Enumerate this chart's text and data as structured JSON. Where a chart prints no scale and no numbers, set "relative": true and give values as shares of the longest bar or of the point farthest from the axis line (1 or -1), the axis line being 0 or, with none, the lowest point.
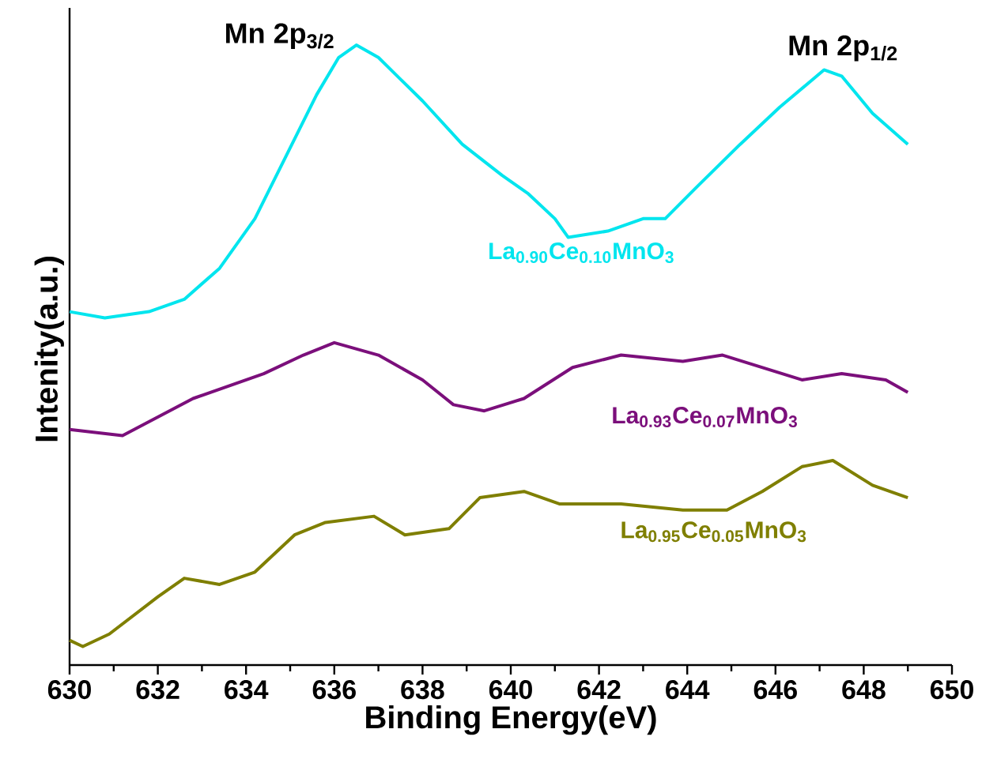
{
  "chart_data": {
    "type": "line",
    "relative": true,
    "xlabel": "Binding Energy(eV)",
    "ylabel": "Intenity(a.u.)",
    "xlim": [
      630,
      650
    ],
    "xticks": [
      630,
      632,
      634,
      636,
      638,
      640,
      642,
      644,
      646,
      648,
      650
    ],
    "tick_labels": "x",
    "legend": false,
    "grid": false,
    "marker": "none",
    "line_style": "solid",
    "annotations": [
      {
        "text": "Mn 2p$_{3/2}$",
        "x": 636.5,
        "y": 1.0
      },
      {
        "text": "Mn 2p$_{1/2}$",
        "x": 647.1,
        "y": 0.96
      }
    ],
    "series": [
      {
        "name": "La$_{0.90}$Ce$_{0.10}$MnO$_{3}$",
        "color": "#00e5ee",
        "x": [
          630.0,
          630.8,
          631.8,
          632.6,
          633.4,
          634.2,
          634.9,
          635.6,
          636.1,
          636.5,
          637.0,
          638.0,
          638.9,
          639.8,
          640.4,
          641.0,
          641.3,
          642.2,
          643.0,
          643.5,
          644.2,
          645.2,
          646.1,
          647.1,
          647.5,
          648.2,
          649.0
        ],
        "values": [
          0.57,
          0.56,
          0.57,
          0.59,
          0.64,
          0.72,
          0.82,
          0.92,
          0.98,
          1.0,
          0.98,
          0.91,
          0.84,
          0.79,
          0.76,
          0.72,
          0.69,
          0.7,
          0.72,
          0.72,
          0.77,
          0.84,
          0.9,
          0.96,
          0.95,
          0.89,
          0.84
        ]
      },
      {
        "name": "La$_{0.93}$Ce$_{0.07}$MnO$_{3}$",
        "color": "#7b0f7b",
        "x": [
          630.0,
          631.2,
          632.0,
          632.8,
          634.4,
          635.3,
          636.0,
          637.0,
          638.0,
          638.7,
          639.4,
          640.3,
          641.4,
          642.5,
          643.9,
          644.8,
          646.6,
          647.5,
          648.5,
          649.0
        ],
        "values": [
          0.38,
          0.37,
          0.4,
          0.43,
          0.47,
          0.5,
          0.52,
          0.5,
          0.46,
          0.42,
          0.41,
          0.43,
          0.48,
          0.5,
          0.49,
          0.5,
          0.46,
          0.47,
          0.46,
          0.44
        ]
      },
      {
        "name": "La$_{0.95}$Ce$_{0.05}$MnO$_{3}$",
        "color": "#7f7f00",
        "x": [
          630.0,
          630.3,
          630.9,
          632.0,
          632.6,
          633.4,
          634.2,
          635.1,
          635.8,
          636.9,
          637.6,
          638.6,
          639.3,
          640.3,
          641.1,
          641.8,
          642.5,
          643.9,
          644.9,
          645.7,
          646.6,
          647.3,
          648.2,
          649.0
        ],
        "values": [
          0.04,
          0.03,
          0.05,
          0.11,
          0.14,
          0.13,
          0.15,
          0.21,
          0.23,
          0.24,
          0.21,
          0.22,
          0.27,
          0.28,
          0.26,
          0.26,
          0.26,
          0.25,
          0.25,
          0.28,
          0.32,
          0.33,
          0.29,
          0.27
        ]
      }
    ]
  }
}
